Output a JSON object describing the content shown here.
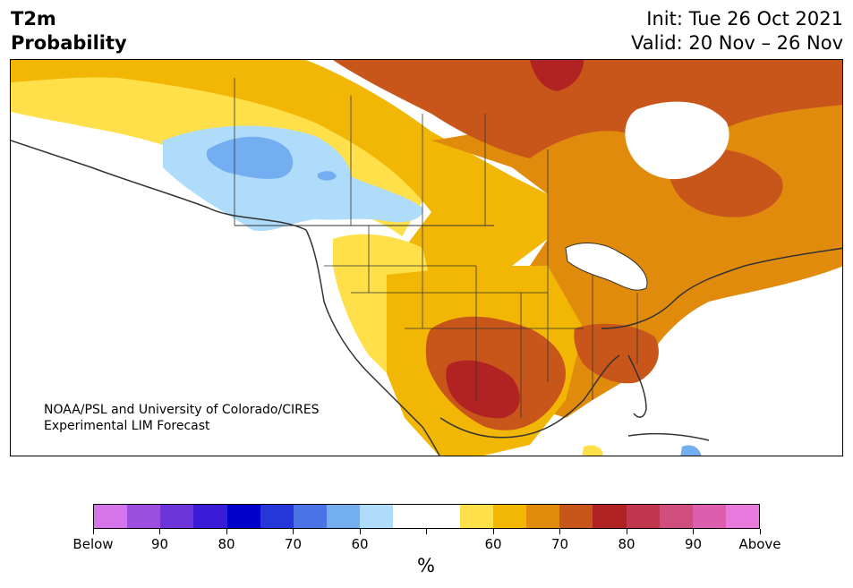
{
  "title": {
    "line1": "T2m",
    "line2": "Probability"
  },
  "subtitle": {
    "init": "Init: Tue 26 Oct 2021",
    "valid": "Valid: 20 Nov – 26 Nov"
  },
  "credit": {
    "line1": "NOAA/PSL and University of Colorado/CIRES",
    "line2": "Experimental LIM Forecast"
  },
  "colorbar": {
    "unit_label": "%",
    "colors": [
      "#d674e9",
      "#9c4fdf",
      "#6b35d9",
      "#3a1bd6",
      "#0000cc",
      "#2537d9",
      "#4a73e6",
      "#73aef0",
      "#aedcfa",
      "#ffffff",
      "#ffffff",
      "#ffe04a",
      "#f2b705",
      "#e08b0c",
      "#c8561a",
      "#b12222",
      "#c0374e",
      "#cf4e7e",
      "#db5fac",
      "#e879dd"
    ],
    "tick_labels": [
      "Below",
      "90",
      "80",
      "70",
      "60",
      "",
      "60",
      "70",
      "80",
      "90",
      "Above"
    ]
  },
  "map": {
    "region": "North America",
    "fill_colors": {
      "white": "#ffffff",
      "light_blue": "#aedcfa",
      "medium_blue": "#73aef0",
      "blue": "#4a73e6",
      "yellow": "#ffe04a",
      "gold": "#f2b705",
      "orange": "#e08b0c",
      "dark_orange": "#c8561a",
      "red": "#b12222"
    }
  }
}
